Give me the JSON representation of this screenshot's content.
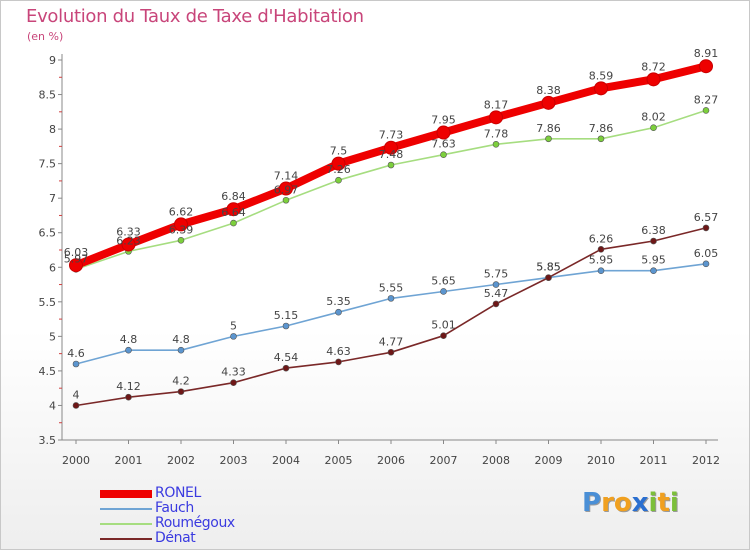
{
  "title": "Evolution du Taux de Taxe d'Habitation",
  "subtitle": "(en %)",
  "logo": {
    "text": "Proxiti",
    "letters": [
      {
        "ch": "P",
        "color": "#4a8fd6"
      },
      {
        "ch": "r",
        "color": "#f0a020"
      },
      {
        "ch": "o",
        "color": "#f0a020"
      },
      {
        "ch": "x",
        "color": "#2a6fd0"
      },
      {
        "ch": "i",
        "color": "#7cbf3a"
      },
      {
        "ch": "t",
        "color": "#f0a020"
      },
      {
        "ch": "i",
        "color": "#7cbf3a"
      }
    ]
  },
  "chart_data": {
    "type": "line",
    "title": "Evolution du Taux de Taxe d'Habitation",
    "ylabel": "(en %)",
    "xlabel": "",
    "x": [
      "2000",
      "2001",
      "2002",
      "2003",
      "2004",
      "2005",
      "2006",
      "2007",
      "2008",
      "2009",
      "2010",
      "2011",
      "2012"
    ],
    "ylim": [
      3.5,
      9
    ],
    "yticks": [
      "3.5",
      "4",
      "4.5",
      "5",
      "5.5",
      "6",
      "6.5",
      "7",
      "7.5",
      "8",
      "8.5",
      "9"
    ],
    "grid": false,
    "legend_position": "bottom-left",
    "series": [
      {
        "name": "RONEL",
        "color": "#ee0000",
        "marker_color": "#ee0000",
        "emphasis": true,
        "values": [
          6.03,
          6.33,
          6.62,
          6.84,
          7.14,
          7.5,
          7.73,
          7.95,
          8.17,
          8.38,
          8.59,
          8.72,
          8.91
        ],
        "labels": [
          "6.03",
          "6.33",
          "6.62",
          "6.84",
          "7.14",
          "7.5",
          "7.73",
          "7.95",
          "8.17",
          "8.38",
          "8.59",
          "8.72",
          "8.91"
        ]
      },
      {
        "name": "Fauch",
        "color": "#6fa4d4",
        "marker_color": "#5b95cf",
        "values": [
          4.6,
          4.8,
          4.8,
          5,
          5.15,
          5.35,
          5.55,
          5.65,
          5.75,
          5.85,
          5.95,
          5.95,
          6.05
        ],
        "labels": [
          "4.6",
          "4.8",
          "4.8",
          "5",
          "5.15",
          "5.35",
          "5.55",
          "5.65",
          "5.75",
          "5.85",
          "5.95",
          "5.95",
          "6.05"
        ]
      },
      {
        "name": "Roumégoux",
        "color": "#a6dd80",
        "marker_color": "#7ccf3c",
        "values": [
          5.97,
          6.23,
          6.39,
          6.64,
          6.97,
          7.26,
          7.48,
          7.63,
          7.78,
          7.86,
          7.86,
          8.02,
          8.27
        ],
        "labels": [
          "5.97",
          "6.23",
          "6.39",
          "6.64",
          "6.97",
          "7.26",
          "7.48",
          "7.63",
          "7.78",
          "7.86",
          "7.86",
          "8.02",
          "8.27"
        ]
      },
      {
        "name": "Dénat",
        "color": "#7a2828",
        "marker_color": "#6e1717",
        "values": [
          4,
          4.12,
          4.2,
          4.33,
          4.54,
          4.63,
          4.77,
          5.01,
          5.47,
          5.85,
          6.26,
          6.38,
          6.57
        ],
        "labels": [
          "4",
          "4.12",
          "4.2",
          "4.33",
          "4.54",
          "4.63",
          "4.77",
          "5.01",
          "5.47",
          "5.85",
          "6.26",
          "6.38",
          "6.57"
        ]
      }
    ]
  }
}
